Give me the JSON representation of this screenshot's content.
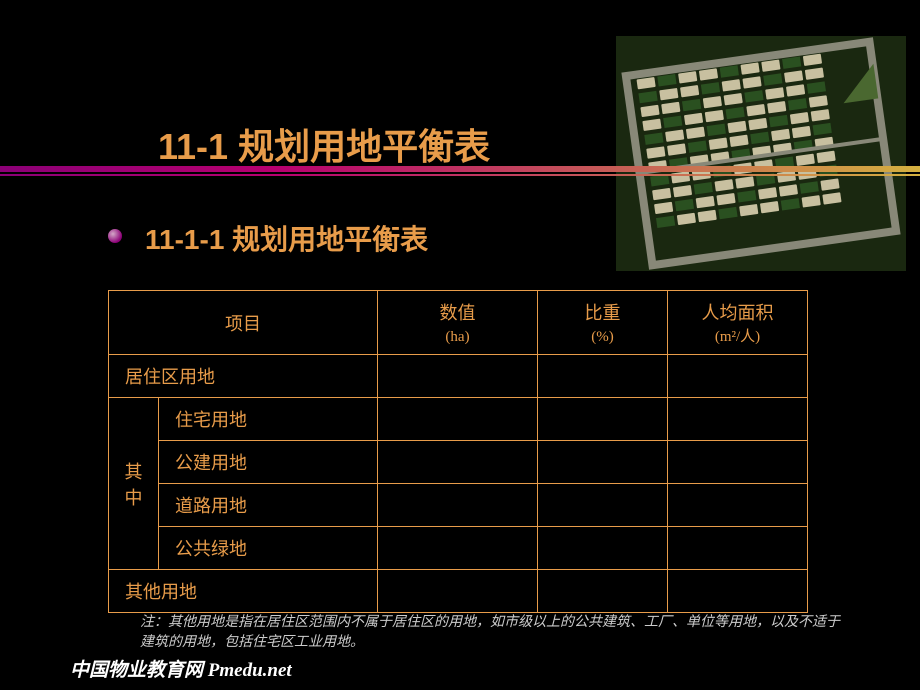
{
  "title": "11-1  规划用地平衡表",
  "subtitle": "11-1-1 规划用地平衡表",
  "colors": {
    "background": "#000000",
    "accent": "#e89c4a",
    "gradient_start": "#8b0076",
    "gradient_end": "#d4b040",
    "note_text": "#cccccc",
    "footer_text": "#ffffff"
  },
  "table": {
    "headers": {
      "project": "项目",
      "value": "数值",
      "value_unit": "(ha)",
      "ratio": "比重",
      "ratio_unit": "(%)",
      "area": "人均面积",
      "area_unit": "(m²/人)"
    },
    "rows": {
      "residential": "居住区用地",
      "among_label": "其中",
      "housing": "住宅用地",
      "public_building": "公建用地",
      "road": "道路用地",
      "public_green": "公共绿地",
      "other": "其他用地"
    }
  },
  "note": "注：其他用地是指在居住区范围内不属于居住区的用地，如市级以上的公共建筑、工厂、单位等用地，以及不适于建筑的用地，包括住宅区工业用地。",
  "footer": "中国物业教育网 Pmedu.net"
}
